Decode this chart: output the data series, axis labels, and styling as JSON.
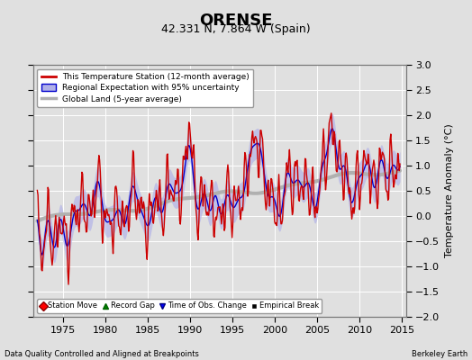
{
  "title": "ORENSE",
  "subtitle": "42.331 N, 7.864 W (Spain)",
  "ylabel": "Temperature Anomaly (°C)",
  "xlabel_left": "Data Quality Controlled and Aligned at Breakpoints",
  "xlabel_right": "Berkeley Earth",
  "xlim": [
    1971.5,
    2015.5
  ],
  "ylim": [
    -2.0,
    3.0
  ],
  "yticks": [
    -2,
    -1.5,
    -1,
    -0.5,
    0,
    0.5,
    1,
    1.5,
    2,
    2.5,
    3
  ],
  "xticks": [
    1975,
    1980,
    1985,
    1990,
    1995,
    2000,
    2005,
    2010,
    2015
  ],
  "bg_color": "#e0e0e0",
  "plot_bg_color": "#e0e0e0",
  "grid_color": "#ffffff",
  "legend1_labels": [
    "This Temperature Station (12-month average)",
    "Regional Expectation with 95% uncertainty",
    "Global Land (5-year average)"
  ],
  "legend2_labels": [
    "Station Move",
    "Record Gap",
    "Time of Obs. Change",
    "Empirical Break"
  ],
  "red_color": "#cc0000",
  "blue_color": "#0000cc",
  "blue_fill_color": "#b0b0e8",
  "gray_color": "#b0b0b0",
  "title_fontsize": 13,
  "subtitle_fontsize": 9,
  "tick_fontsize": 8,
  "ylabel_fontsize": 8
}
